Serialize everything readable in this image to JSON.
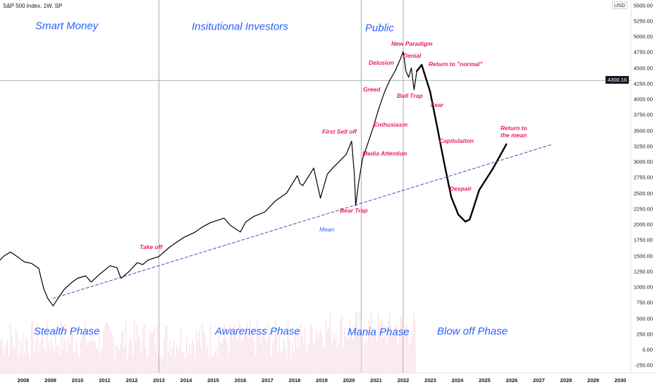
{
  "header": {
    "title": "S&P 500 Index, 1W, SP",
    "currency": "USD"
  },
  "chart_data": {
    "type": "line",
    "title": "S&P 500 Index, 1W, SP",
    "xlim": [
      2007.14,
      2030.5
    ],
    "ylim": [
      -330,
      5590
    ],
    "y_ticks": [
      "5500.00",
      "5250.00",
      "5000.00",
      "4750.00",
      "4500.00",
      "4250.00",
      "4000.00",
      "3750.00",
      "3500.00",
      "3250.00",
      "3000.00",
      "2750.00",
      "2500.00",
      "2250.00",
      "2000.00",
      "1750.00",
      "1500.00",
      "1250.00",
      "1000.00",
      "750.00",
      "500.00",
      "250.00",
      "0.00",
      "-250.00"
    ],
    "x_ticks": [
      "2008",
      "2009",
      "2010",
      "2011",
      "2012",
      "2013",
      "2014",
      "2015",
      "2016",
      "2017",
      "2018",
      "2019",
      "2020",
      "2021",
      "2022",
      "2023",
      "2024",
      "2025",
      "2026",
      "2027",
      "2028",
      "2029",
      "2030"
    ],
    "current_price": "4300.16",
    "series": [
      {
        "name": "S&P 500 weekly close",
        "x": [
          2007.14,
          2007.3,
          2007.53,
          2007.8,
          2008.05,
          2008.3,
          2008.57,
          2008.75,
          2008.9,
          2009.1,
          2009.25,
          2009.5,
          2009.8,
          2010.0,
          2010.3,
          2010.5,
          2010.8,
          2011.2,
          2011.45,
          2011.6,
          2011.9,
          2012.2,
          2012.4,
          2012.6,
          2013.0,
          2013.4,
          2013.9,
          2014.3,
          2014.6,
          2014.9,
          2015.4,
          2015.65,
          2016.0,
          2016.2,
          2016.5,
          2016.9,
          2017.3,
          2017.7,
          2018.1,
          2018.2,
          2018.3,
          2018.7,
          2018.95,
          2019.2,
          2019.4,
          2019.9,
          2020.1,
          2020.2,
          2020.25,
          2020.35,
          2020.5,
          2020.7,
          2020.9,
          2021.1,
          2021.3,
          2021.5,
          2021.7,
          2021.9,
          2022.0,
          2022.1,
          2022.2,
          2022.3,
          2022.4,
          2022.5
        ],
        "values": [
          1430,
          1500,
          1560,
          1480,
          1400,
          1380,
          1300,
          980,
          820,
          700,
          800,
          960,
          1080,
          1140,
          1180,
          1080,
          1200,
          1340,
          1310,
          1140,
          1250,
          1390,
          1360,
          1430,
          1490,
          1640,
          1790,
          1870,
          1960,
          2030,
          2100,
          1980,
          1880,
          2040,
          2130,
          2200,
          2380,
          2500,
          2780,
          2650,
          2620,
          2900,
          2420,
          2800,
          2900,
          3120,
          3330,
          2800,
          2300,
          2650,
          3050,
          3300,
          3560,
          3850,
          4100,
          4300,
          4450,
          4650,
          4760,
          4450,
          4350,
          4500,
          4150,
          4450
        ]
      },
      {
        "name": "Projection",
        "x": [
          2022.5,
          2022.68,
          2022.99,
          2023.25,
          2023.5,
          2023.77,
          2024.03,
          2024.29,
          2024.45,
          2024.55,
          2024.8,
          2025.3,
          2025.8
        ],
        "values": [
          4450,
          4550,
          4124,
          3562,
          3000,
          2438,
          2157,
          2045,
          2080,
          2213,
          2551,
          2888,
          3281
        ]
      },
      {
        "name": "Mean",
        "style": "dashed",
        "x": [
          2009.1,
          2027.5
        ],
        "values": [
          820,
          3281
        ]
      }
    ],
    "vertical_markers": [
      2013.0,
      2020.45,
      2022.0
    ],
    "phases": {
      "top": [
        "Smart Money",
        "Insitutional Investors",
        "Public"
      ],
      "bottom": [
        "Stealth Phase",
        "Awareness Phase",
        "Mania Phase",
        "Blow off Phase"
      ]
    },
    "annotations": {
      "take_off": "Take off",
      "first_sell_off": "First Sell off",
      "media_attention": "Media Attention",
      "enthusiasm": "Enthusiasm",
      "greed": "Greed",
      "delusion": "Delusion",
      "new_paradigm": "New Paradigm",
      "denial": "Denial",
      "return_normal": "Return to \"normal\"",
      "bull_trap": "Bull Trap",
      "fear": "Fear",
      "capitulation": "Capitulaiton",
      "return_mean_1": "Return to",
      "return_mean_2": "the mean",
      "despair": "Despair",
      "bear_trap": "Bear Trap",
      "mean": "Mean"
    },
    "colors": {
      "price": "#000000",
      "mean": "#3f51b5",
      "annotation": "#e91e63",
      "phase": "#2962ff",
      "volume": "#f3c6cf"
    }
  }
}
